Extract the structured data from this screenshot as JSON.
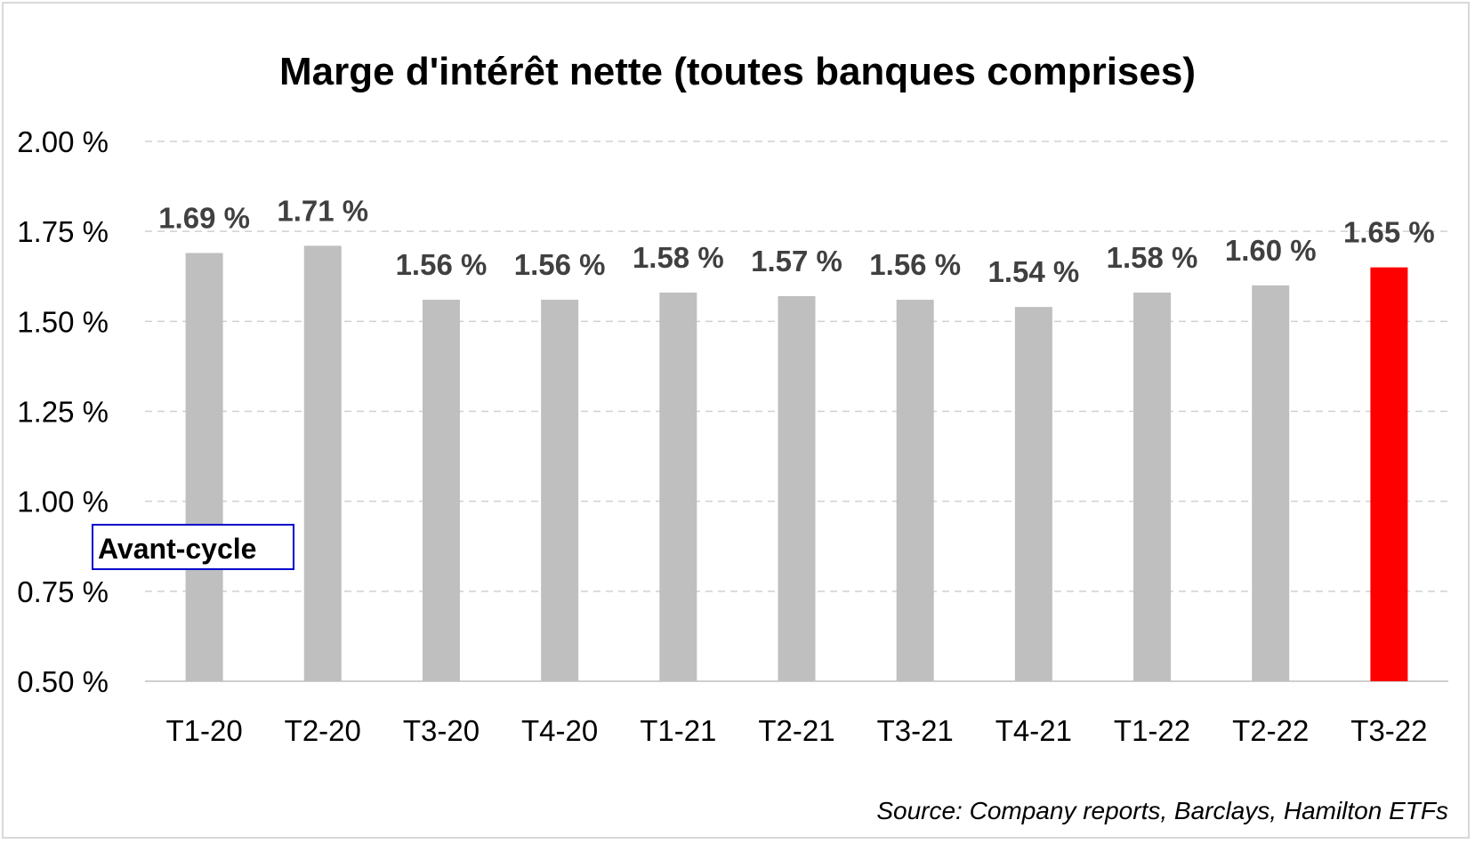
{
  "chart_data": {
    "type": "bar",
    "title": "Marge d'intérêt nette (toutes banques comprises)",
    "categories": [
      "T1-20",
      "T2-20",
      "T3-20",
      "T4-20",
      "T1-21",
      "T2-21",
      "T3-21",
      "T4-21",
      "T1-22",
      "T2-22",
      "T3-22"
    ],
    "values": [
      1.69,
      1.71,
      1.56,
      1.56,
      1.58,
      1.57,
      1.56,
      1.54,
      1.58,
      1.6,
      1.65
    ],
    "data_labels": [
      "1.69 %",
      "1.71 %",
      "1.56 %",
      "1.56 %",
      "1.58 %",
      "1.57 %",
      "1.56 %",
      "1.54 %",
      "1.58 %",
      "1.60 %",
      "1.65 %"
    ],
    "yticks": [
      0.5,
      0.75,
      1.0,
      1.25,
      1.5,
      1.75,
      2.0
    ],
    "ytick_labels": [
      "0.50 %",
      "0.75 %",
      "1.00 %",
      "1.25 %",
      "1.50 %",
      "1.75 %",
      "2.00 %"
    ],
    "ylim": [
      0.5,
      2.0
    ],
    "grid": "horizontal-dashed",
    "bar_color": "#bfbfbf",
    "highlight_color": "#ff0000",
    "highlight_index": 10,
    "annotation": "Avant-cycle",
    "annotation_border_color": "#0000cc",
    "source": "Source: Company reports, Barclays, Hamilton ETFs"
  }
}
